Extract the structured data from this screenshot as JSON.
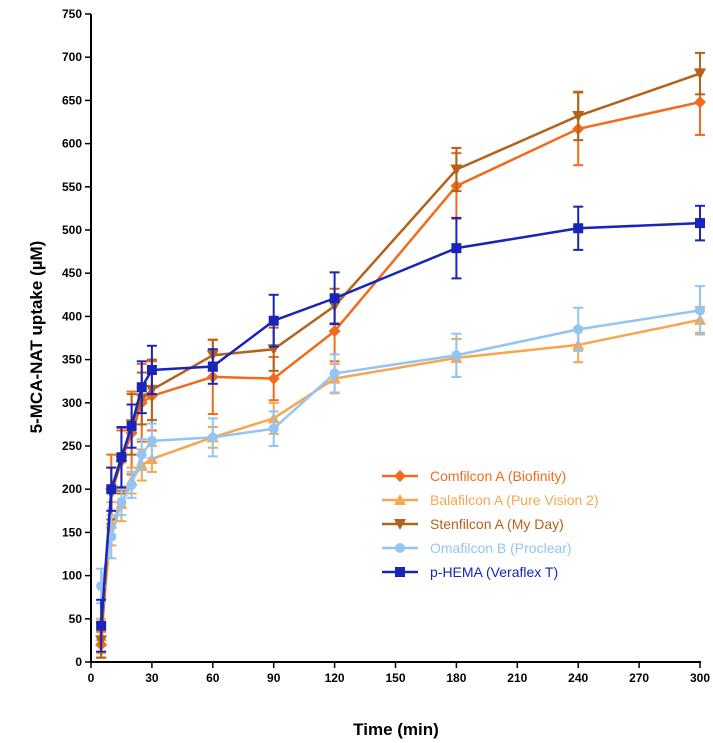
{
  "chart_data": {
    "type": "line",
    "title": "",
    "xlabel": "Time (min)",
    "ylabel": "5-MCA-NAT uptake (µM)",
    "xlim": [
      0,
      300
    ],
    "ylim": [
      0,
      750
    ],
    "xticks": [
      0,
      30,
      60,
      90,
      120,
      150,
      180,
      210,
      240,
      270,
      300
    ],
    "yticks": [
      0,
      50,
      100,
      150,
      200,
      250,
      300,
      350,
      400,
      450,
      500,
      550,
      600,
      650,
      700,
      750
    ],
    "grid": false,
    "legend_position": "lower-right",
    "series": [
      {
        "name": "Comfilcon A (Biofinity)",
        "color": "#f26b1d",
        "marker": "diamond",
        "x": [
          5,
          10,
          15,
          20,
          25,
          30,
          60,
          90,
          120,
          180,
          240,
          300
        ],
        "y": [
          20,
          200,
          233,
          265,
          300,
          308,
          330,
          328,
          383,
          551,
          617,
          648
        ],
        "err": [
          15,
          40,
          35,
          48,
          45,
          40,
          43,
          25,
          35,
          38,
          42,
          38
        ]
      },
      {
        "name": "Balafilcon A (Pure Vision 2)",
        "color": "#f7a64f",
        "marker": "triangle-up",
        "x": [
          5,
          10,
          15,
          20,
          25,
          30,
          60,
          90,
          120,
          180,
          240,
          300
        ],
        "y": [
          30,
          160,
          183,
          210,
          228,
          235,
          260,
          282,
          328,
          352,
          367,
          396
        ],
        "err": [
          20,
          25,
          20,
          15,
          18,
          15,
          12,
          18,
          17,
          22,
          20,
          15
        ]
      },
      {
        "name": "Stenfilcon A (My Day)",
        "color": "#b4621a",
        "marker": "triangle-down",
        "x": [
          5,
          10,
          15,
          20,
          25,
          30,
          60,
          90,
          120,
          180,
          240,
          300
        ],
        "y": [
          25,
          195,
          233,
          275,
          305,
          315,
          355,
          362,
          412,
          570,
          632,
          681
        ],
        "err": [
          20,
          30,
          38,
          35,
          30,
          35,
          18,
          25,
          20,
          25,
          28,
          24
        ]
      },
      {
        "name": "Omafilcon B (Proclear)",
        "color": "#93c4f2",
        "marker": "circle",
        "x": [
          5,
          10,
          15,
          20,
          25,
          30,
          60,
          90,
          120,
          180,
          240,
          300
        ],
        "y": [
          88,
          145,
          185,
          205,
          240,
          256,
          260,
          270,
          334,
          355,
          385,
          407
        ],
        "err": [
          20,
          25,
          15,
          15,
          18,
          20,
          22,
          20,
          22,
          25,
          25,
          28
        ]
      },
      {
        "name": "p-HEMA (Veraflex T)",
        "color": "#1a24b8",
        "marker": "square",
        "x": [
          5,
          10,
          15,
          20,
          25,
          30,
          60,
          90,
          120,
          180,
          240,
          300
        ],
        "y": [
          42,
          200,
          237,
          273,
          318,
          338,
          342,
          395,
          421,
          479,
          502,
          508
        ],
        "err": [
          30,
          25,
          35,
          25,
          30,
          28,
          20,
          30,
          30,
          35,
          25,
          20
        ]
      }
    ]
  }
}
